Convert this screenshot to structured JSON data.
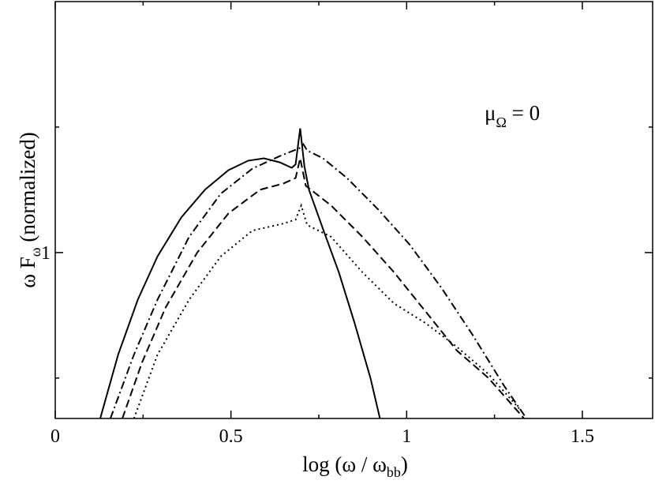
{
  "chart_data": {
    "type": "line",
    "x_label": {
      "text": "log (ω / ω",
      "sub": "bb",
      "end": ")"
    },
    "y_label": {
      "text": "ω F",
      "sub": "ω",
      "end": " (normalized)"
    },
    "annotation": {
      "text": "μ",
      "sub": "Ω",
      "end": " = 0"
    },
    "xlim": [
      0,
      1.7
    ],
    "xticks": [
      0,
      0.5,
      1,
      1.5
    ],
    "xminor": [
      0.25,
      0.75,
      1.25
    ],
    "ylim": [
      0.4,
      4
    ],
    "yticks": [
      1
    ],
    "yminor": [
      0.5,
      2
    ],
    "ylog": true,
    "grid": false,
    "series": [
      {
        "color": "#000000",
        "dash": "solid",
        "x": [
          0.128,
          0.179,
          0.235,
          0.291,
          0.359,
          0.426,
          0.493,
          0.549,
          0.594,
          0.639,
          0.673,
          0.684,
          0.697,
          0.709,
          0.722,
          0.762,
          0.807,
          0.852,
          0.897,
          0.924
        ],
        "values": [
          0.4,
          0.569,
          0.771,
          0.979,
          1.215,
          1.415,
          1.577,
          1.661,
          1.683,
          1.646,
          1.597,
          1.627,
          1.985,
          1.611,
          1.415,
          1.139,
          0.897,
          0.677,
          0.5,
          0.4
        ]
      },
      {
        "color": "#000000",
        "dash": "dashdot",
        "x": [
          0.157,
          0.224,
          0.291,
          0.381,
          0.471,
          0.561,
          0.639,
          0.695,
          0.706,
          0.717,
          0.762,
          0.83,
          0.919,
          1.009,
          1.099,
          1.188,
          1.278,
          1.341
        ],
        "values": [
          0.4,
          0.569,
          0.771,
          1.091,
          1.384,
          1.59,
          1.704,
          1.78,
          1.82,
          1.757,
          1.683,
          1.51,
          1.269,
          1.044,
          0.823,
          0.634,
          0.478,
          0.4
        ]
      },
      {
        "color": "#000000",
        "dash": "dashed",
        "x": [
          0.191,
          0.247,
          0.314,
          0.404,
          0.493,
          0.583,
          0.65,
          0.684,
          0.697,
          0.713,
          0.785,
          0.874,
          0.964,
          1.054,
          1.143,
          1.233,
          1.334
        ],
        "values": [
          0.4,
          0.545,
          0.738,
          1,
          1.242,
          1.415,
          1.465,
          1.51,
          1.683,
          1.446,
          1.297,
          1.091,
          0.897,
          0.722,
          0.582,
          0.5,
          0.4
        ]
      },
      {
        "color": "#000000",
        "dash": "dotted",
        "x": [
          0.224,
          0.291,
          0.381,
          0.471,
          0.561,
          0.65,
          0.684,
          0.7,
          0.717,
          0.785,
          0.874,
          0.964,
          1.054,
          1.143,
          1.233,
          1.323
        ],
        "values": [
          0.4,
          0.569,
          0.771,
          0.979,
          1.129,
          1.174,
          1.2,
          1.297,
          1.164,
          1.091,
          0.897,
          0.755,
          0.677,
          0.594,
          0.511,
          0.42
        ]
      }
    ]
  }
}
